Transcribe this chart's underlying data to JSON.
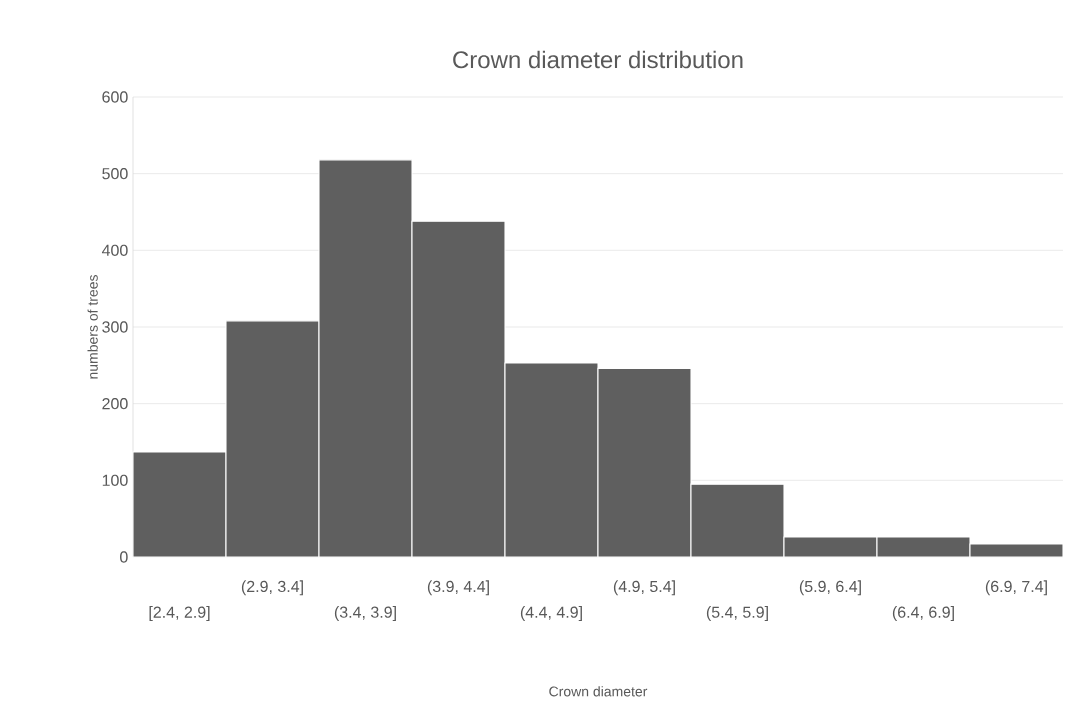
{
  "chart_data": {
    "type": "bar",
    "title": "Crown diameter distribution",
    "xlabel": "Crown diameter",
    "ylabel": "numbers of trees",
    "categories": [
      "[2.4, 2.9]",
      "(2.9, 3.4]",
      "(3.4, 3.9]",
      "(3.9, 4.4]",
      "(4.4, 4.9]",
      "(4.9, 5.4]",
      "(5.4, 5.9]",
      "(5.9, 6.4]",
      "(6.4, 6.9]",
      "(6.9, 7.4]"
    ],
    "values": [
      137,
      308,
      518,
      438,
      253,
      246,
      95,
      26,
      26,
      17
    ],
    "color": "#5f5f5f",
    "ylim": [
      0,
      600
    ],
    "yticks": [
      0,
      100,
      200,
      300,
      400,
      500,
      600
    ],
    "grid": "y"
  }
}
